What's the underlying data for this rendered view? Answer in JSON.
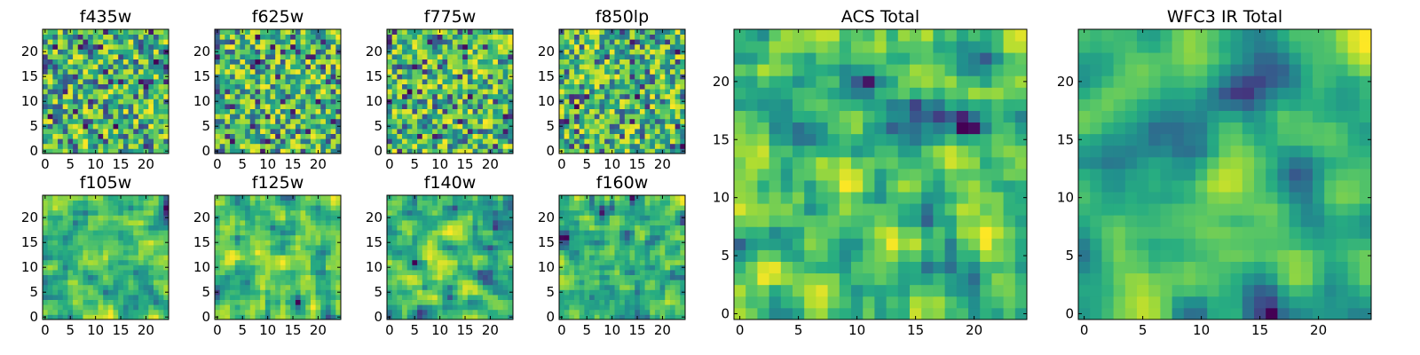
{
  "chart_data": [
    {
      "type": "heatmap",
      "title": "f435w",
      "nx": 25,
      "ny": 25,
      "seed": 11,
      "smooth": 0,
      "xticks": [
        0,
        5,
        10,
        15,
        20
      ],
      "yticks": [
        0,
        5,
        10,
        15,
        20
      ],
      "colormap": "viridis"
    },
    {
      "type": "heatmap",
      "title": "f625w",
      "nx": 25,
      "ny": 25,
      "seed": 23,
      "smooth": 0,
      "xticks": [
        0,
        5,
        10,
        15,
        20
      ],
      "yticks": [
        0,
        5,
        10,
        15,
        20
      ],
      "colormap": "viridis"
    },
    {
      "type": "heatmap",
      "title": "f775w",
      "nx": 25,
      "ny": 25,
      "seed": 37,
      "smooth": 0,
      "xticks": [
        0,
        5,
        10,
        15,
        20
      ],
      "yticks": [
        0,
        5,
        10,
        15,
        20
      ],
      "colormap": "viridis"
    },
    {
      "type": "heatmap",
      "title": "f850lp",
      "nx": 25,
      "ny": 25,
      "seed": 41,
      "smooth": 0,
      "xticks": [
        0,
        5,
        10,
        15,
        20
      ],
      "yticks": [
        0,
        5,
        10,
        15,
        20
      ],
      "colormap": "viridis"
    },
    {
      "type": "heatmap",
      "title": "f105w",
      "nx": 25,
      "ny": 25,
      "seed": 53,
      "smooth": 1,
      "xticks": [
        0,
        5,
        10,
        15,
        20
      ],
      "yticks": [
        0,
        5,
        10,
        15,
        20
      ],
      "colormap": "viridis"
    },
    {
      "type": "heatmap",
      "title": "f125w",
      "nx": 25,
      "ny": 25,
      "seed": 67,
      "smooth": 1,
      "xticks": [
        0,
        5,
        10,
        15,
        20
      ],
      "yticks": [
        0,
        5,
        10,
        15,
        20
      ],
      "colormap": "viridis"
    },
    {
      "type": "heatmap",
      "title": "f140w",
      "nx": 25,
      "ny": 25,
      "seed": 71,
      "smooth": 1,
      "xticks": [
        0,
        5,
        10,
        15,
        20
      ],
      "yticks": [
        0,
        5,
        10,
        15,
        20
      ],
      "colormap": "viridis"
    },
    {
      "type": "heatmap",
      "title": "f160w",
      "nx": 25,
      "ny": 25,
      "seed": 89,
      "smooth": 1,
      "xticks": [
        0,
        5,
        10,
        15,
        20
      ],
      "yticks": [
        0,
        5,
        10,
        15,
        20
      ],
      "colormap": "viridis"
    },
    {
      "type": "heatmap",
      "title": "ACS Total",
      "nx": 25,
      "ny": 25,
      "seed": 97,
      "smooth": 1,
      "xticks": [
        0,
        5,
        10,
        15,
        20
      ],
      "yticks": [
        0,
        5,
        10,
        15,
        20
      ],
      "colormap": "viridis"
    },
    {
      "type": "heatmap",
      "title": "WFC3 IR Total",
      "nx": 25,
      "ny": 25,
      "seed": 101,
      "smooth": 2,
      "xticks": [
        0,
        5,
        10,
        15,
        20
      ],
      "yticks": [
        0,
        5,
        10,
        15,
        20
      ],
      "colormap": "viridis"
    }
  ]
}
